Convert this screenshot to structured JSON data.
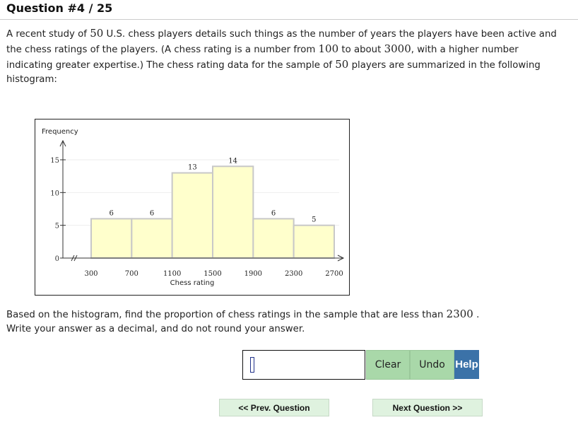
{
  "header": {
    "title": "Question #4 / 25"
  },
  "question": {
    "intro_parts": [
      "A recent study of ",
      "50",
      " U.S. chess players details such things as the number of years the players have been active and the chess ratings of the players. (A chess rating is a number from ",
      "100",
      " to about ",
      "3000",
      ", with a higher number indicating greater expertise.) The chess rating data for the sample of ",
      "50",
      " players are summarized in the following histogram:"
    ],
    "prompt_parts": [
      "Based on the histogram, find the proportion of chess ratings in the sample that are less than ",
      "2300",
      " .",
      "Write your answer as a decimal, and do not round your answer."
    ]
  },
  "chart_data": {
    "type": "bar",
    "histogram": true,
    "bin_edges": [
      300,
      700,
      1100,
      1500,
      1900,
      2300,
      2700
    ],
    "categories": [
      "300-700",
      "700-1100",
      "1100-1500",
      "1500-1900",
      "1900-2300",
      "2300-2700"
    ],
    "values": [
      6,
      6,
      13,
      14,
      6,
      5
    ],
    "data_labels": [
      "6",
      "6",
      "13",
      "14",
      "6",
      "5"
    ],
    "xlabel": "Chess rating",
    "ylabel": "Frequency",
    "x_ticks": [
      "300",
      "700",
      "1100",
      "1500",
      "1900",
      "2300",
      "2700"
    ],
    "y_ticks": [
      "0",
      "5",
      "10",
      "15"
    ],
    "ylim": [
      0,
      16
    ],
    "xlim": [
      300,
      2700
    ],
    "axis_break": true,
    "grid": true,
    "bar_color": "#ffffcc",
    "bar_border": "#c8c8c8"
  },
  "answer": {
    "value": "",
    "clear_label": "Clear",
    "undo_label": "Undo",
    "help_label": "Help"
  },
  "nav": {
    "prev_label": "<< Prev. Question",
    "next_label": "Next Question >>"
  },
  "colors": {
    "green": "#a9d8a9",
    "help": "#3b72a8",
    "nav_bg": "#dff2df"
  }
}
